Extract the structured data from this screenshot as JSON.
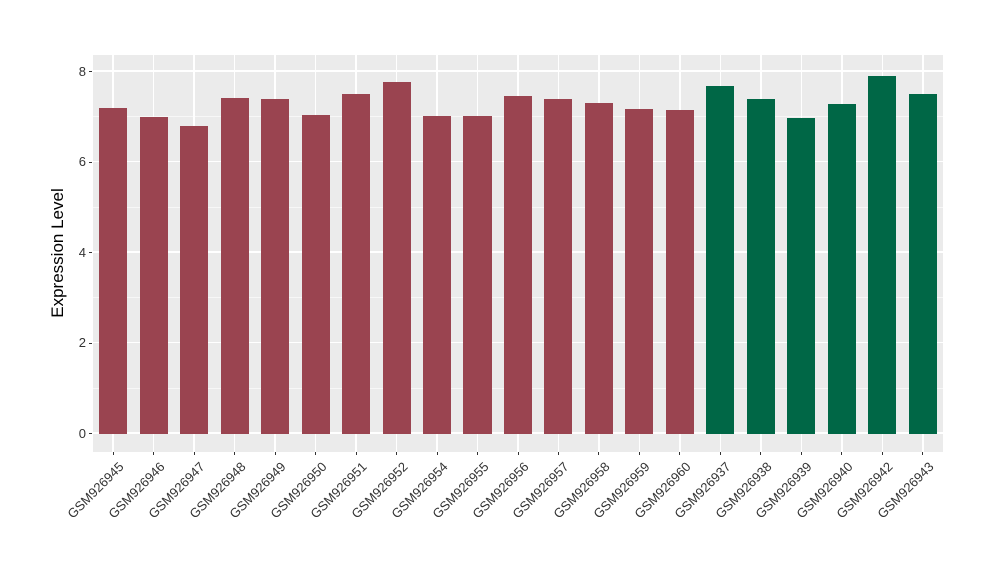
{
  "chart_data": {
    "type": "bar",
    "title": "",
    "xlabel": "",
    "ylabel": "Expression Level",
    "ylim": [
      0,
      8
    ],
    "yticks": [
      0,
      2,
      4,
      6,
      8
    ],
    "minor_yticks": [
      1,
      3,
      5,
      7
    ],
    "grid": "on",
    "legend": "none",
    "panel_background": "#EBEBEB",
    "grid_color": "#FFFFFF",
    "tick_label_color": "#333333",
    "axis_title_color": "#000000",
    "group_colors": {
      "group1": "#9A4450",
      "group2": "#006746"
    },
    "categories": [
      "GSM926945",
      "GSM926946",
      "GSM926947",
      "GSM926948",
      "GSM926949",
      "GSM926950",
      "GSM926951",
      "GSM926952",
      "GSM926954",
      "GSM926955",
      "GSM926956",
      "GSM926957",
      "GSM926958",
      "GSM926959",
      "GSM926960",
      "GSM926937",
      "GSM926938",
      "GSM926939",
      "GSM926940",
      "GSM926942",
      "GSM926943"
    ],
    "bars": [
      {
        "label": "GSM926945",
        "value": 7.2,
        "group": "group1"
      },
      {
        "label": "GSM926946",
        "value": 7.0,
        "group": "group1"
      },
      {
        "label": "GSM926947",
        "value": 6.8,
        "group": "group1"
      },
      {
        "label": "GSM926948",
        "value": 7.42,
        "group": "group1"
      },
      {
        "label": "GSM926949",
        "value": 7.39,
        "group": "group1"
      },
      {
        "label": "GSM926950",
        "value": 7.05,
        "group": "group1"
      },
      {
        "label": "GSM926951",
        "value": 7.52,
        "group": "group1"
      },
      {
        "label": "GSM926952",
        "value": 7.78,
        "group": "group1"
      },
      {
        "label": "GSM926954",
        "value": 7.02,
        "group": "group1"
      },
      {
        "label": "GSM926955",
        "value": 7.02,
        "group": "group1"
      },
      {
        "label": "GSM926956",
        "value": 7.47,
        "group": "group1"
      },
      {
        "label": "GSM926957",
        "value": 7.4,
        "group": "group1"
      },
      {
        "label": "GSM926958",
        "value": 7.31,
        "group": "group1"
      },
      {
        "label": "GSM926959",
        "value": 7.18,
        "group": "group1"
      },
      {
        "label": "GSM926960",
        "value": 7.16,
        "group": "group1"
      },
      {
        "label": "GSM926937",
        "value": 7.68,
        "group": "group2"
      },
      {
        "label": "GSM926938",
        "value": 7.4,
        "group": "group2"
      },
      {
        "label": "GSM926939",
        "value": 6.97,
        "group": "group2"
      },
      {
        "label": "GSM926940",
        "value": 7.28,
        "group": "group2"
      },
      {
        "label": "GSM926942",
        "value": 7.9,
        "group": "group2"
      },
      {
        "label": "GSM926943",
        "value": 7.52,
        "group": "group2"
      }
    ]
  }
}
